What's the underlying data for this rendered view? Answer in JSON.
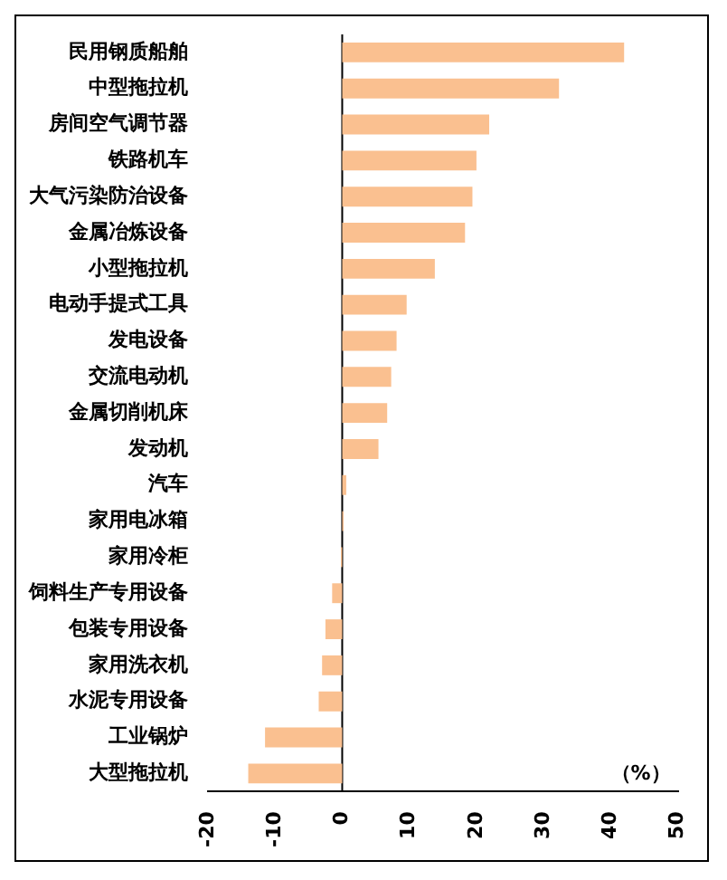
{
  "chart_data": {
    "type": "bar",
    "orientation": "horizontal",
    "categories": [
      "民用钢质船舶",
      "中型拖拉机",
      "房间空气调节器",
      "铁路机车",
      "大气污染防治设备",
      "金属冶炼设备",
      "小型拖拉机",
      "电动手提式工具",
      "发电设备",
      "交流电动机",
      "金属切削机床",
      "发动机",
      "汽车",
      "家用电冰箱",
      "家用冷柜",
      "饲料生产专用设备",
      "包装专用设备",
      "家用洗衣机",
      "水泥专用设备",
      "工业锅炉",
      "大型拖拉机"
    ],
    "values": [
      42.0,
      32.3,
      21.9,
      20.0,
      19.4,
      18.3,
      13.8,
      9.6,
      8.1,
      7.3,
      6.7,
      5.4,
      0.6,
      0.2,
      -0.2,
      -1.5,
      -2.5,
      -3,
      -3.5,
      -11.5,
      -14
    ],
    "color": "#fac090",
    "xlim": [
      -20,
      50
    ],
    "xticks": [
      -20,
      -10,
      0,
      10,
      20,
      30,
      40,
      50
    ],
    "ref_lines": [
      {
        "axis": "x",
        "value": 0,
        "color": "#000000"
      }
    ],
    "annotations": [
      "（%）"
    ],
    "grid": false,
    "legend": false
  }
}
